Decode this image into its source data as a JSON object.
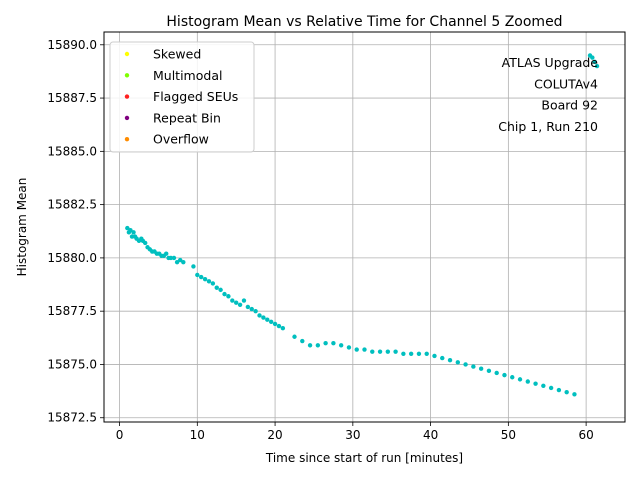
{
  "chart_data": {
    "type": "scatter",
    "title": "Histogram Mean vs Relative Time for Channel 5 Zoomed",
    "xlabel": "Time since start of run [minutes]",
    "ylabel": "Histogram Mean",
    "xlim": [
      -2,
      65
    ],
    "ylim": [
      15872.3,
      15890.6
    ],
    "xticks": [
      0,
      10,
      20,
      30,
      40,
      50,
      60
    ],
    "yticks": [
      15872.5,
      15875.0,
      15877.5,
      15880.0,
      15882.5,
      15885.0,
      15887.5,
      15890.0
    ],
    "xtick_labels": [
      "0",
      "10",
      "20",
      "30",
      "40",
      "50",
      "60"
    ],
    "ytick_labels": [
      "15872.5",
      "15875.0",
      "15877.5",
      "15880.0",
      "15882.5",
      "15885.0",
      "15887.5",
      "15890.0"
    ],
    "grid": true,
    "legend": {
      "location": "upper-left",
      "entries": [
        {
          "label": "Skewed",
          "color": "#ffff00"
        },
        {
          "label": "Multimodal",
          "color": "#7fff00"
        },
        {
          "label": "Flagged SEUs",
          "color": "#ff2020"
        },
        {
          "label": "Repeat Bin",
          "color": "#800080"
        },
        {
          "label": "Overflow",
          "color": "#ff8c00"
        }
      ]
    },
    "annotation": [
      "ATLAS Upgrade",
      "COLUTAv4",
      "Board 92",
      "Chip 1, Run 210"
    ],
    "series": [
      {
        "name": "Histogram Mean",
        "color": "#00bfbf",
        "x": [
          1.0,
          1.2,
          1.4,
          1.6,
          1.8,
          2.0,
          2.2,
          2.5,
          2.8,
          3.0,
          3.3,
          3.6,
          3.9,
          4.2,
          4.5,
          4.8,
          5.1,
          5.4,
          5.7,
          6.0,
          6.3,
          6.6,
          7.0,
          7.4,
          7.8,
          8.2,
          9.5,
          10.0,
          10.5,
          11.0,
          11.5,
          12.0,
          12.5,
          13.0,
          13.5,
          14.0,
          14.5,
          15.0,
          15.5,
          16.0,
          16.5,
          17.0,
          17.5,
          18.0,
          18.5,
          19.0,
          19.5,
          20.0,
          20.5,
          21.0,
          22.5,
          23.5,
          24.5,
          25.5,
          26.5,
          27.5,
          28.5,
          29.5,
          30.5,
          31.5,
          32.5,
          33.5,
          34.5,
          35.5,
          36.5,
          37.5,
          38.5,
          39.5,
          40.5,
          41.5,
          42.5,
          43.5,
          44.5,
          45.5,
          46.5,
          47.5,
          48.5,
          49.5,
          50.5,
          51.5,
          52.5,
          53.5,
          54.5,
          55.5,
          56.5,
          57.5,
          58.5,
          60.5,
          60.8,
          61.1,
          61.4
        ],
        "y": [
          15881.4,
          15881.2,
          15881.3,
          15881.0,
          15881.2,
          15881.0,
          15880.9,
          15880.8,
          15880.9,
          15880.8,
          15880.7,
          15880.5,
          15880.4,
          15880.3,
          15880.3,
          15880.2,
          15880.2,
          15880.1,
          15880.1,
          15880.2,
          15880.0,
          15880.0,
          15880.0,
          15879.8,
          15879.9,
          15879.8,
          15879.6,
          15879.2,
          15879.1,
          15879.0,
          15878.9,
          15878.8,
          15878.6,
          15878.5,
          15878.3,
          15878.2,
          15878.0,
          15877.9,
          15877.8,
          15878.0,
          15877.7,
          15877.6,
          15877.5,
          15877.3,
          15877.2,
          15877.1,
          15877.0,
          15876.9,
          15876.8,
          15876.7,
          15876.3,
          15876.1,
          15875.9,
          15875.9,
          15876.0,
          15876.0,
          15875.9,
          15875.8,
          15875.7,
          15875.7,
          15875.6,
          15875.6,
          15875.6,
          15875.6,
          15875.5,
          15875.5,
          15875.5,
          15875.5,
          15875.4,
          15875.3,
          15875.2,
          15875.1,
          15875.0,
          15874.9,
          15874.8,
          15874.7,
          15874.6,
          15874.5,
          15874.4,
          15874.3,
          15874.2,
          15874.1,
          15874.0,
          15873.9,
          15873.8,
          15873.7,
          15873.6,
          15889.5,
          15889.4,
          15889.2,
          15889.0
        ]
      }
    ]
  }
}
